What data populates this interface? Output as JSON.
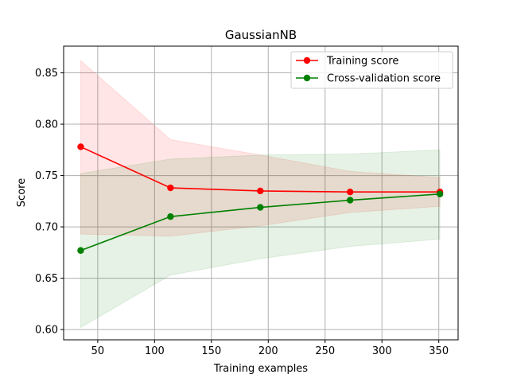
{
  "chart_data": {
    "type": "line",
    "title": "GaussianNB",
    "xlabel": "Training examples",
    "ylabel": "Score",
    "xlim": [
      20,
      367
    ],
    "ylim": [
      0.59,
      0.876
    ],
    "xticks": [
      50,
      100,
      150,
      200,
      250,
      300,
      350
    ],
    "yticks": [
      0.6,
      0.65,
      0.7,
      0.75,
      0.8,
      0.85
    ],
    "grid": true,
    "legend_position": "top-right",
    "x": [
      35,
      114,
      193,
      272,
      351
    ],
    "series": [
      {
        "name": "Training score",
        "color": "#ff0000",
        "values": [
          0.778,
          0.738,
          0.735,
          0.734,
          0.734
        ],
        "band_lower": [
          0.693,
          0.691,
          0.701,
          0.714,
          0.72
        ],
        "band_upper": [
          0.862,
          0.785,
          0.77,
          0.754,
          0.748
        ]
      },
      {
        "name": "Cross-validation score",
        "color": "#008000",
        "values": [
          0.677,
          0.71,
          0.719,
          0.726,
          0.732
        ],
        "band_lower": [
          0.602,
          0.653,
          0.669,
          0.681,
          0.688
        ],
        "band_upper": [
          0.752,
          0.766,
          0.77,
          0.771,
          0.775
        ]
      }
    ]
  }
}
